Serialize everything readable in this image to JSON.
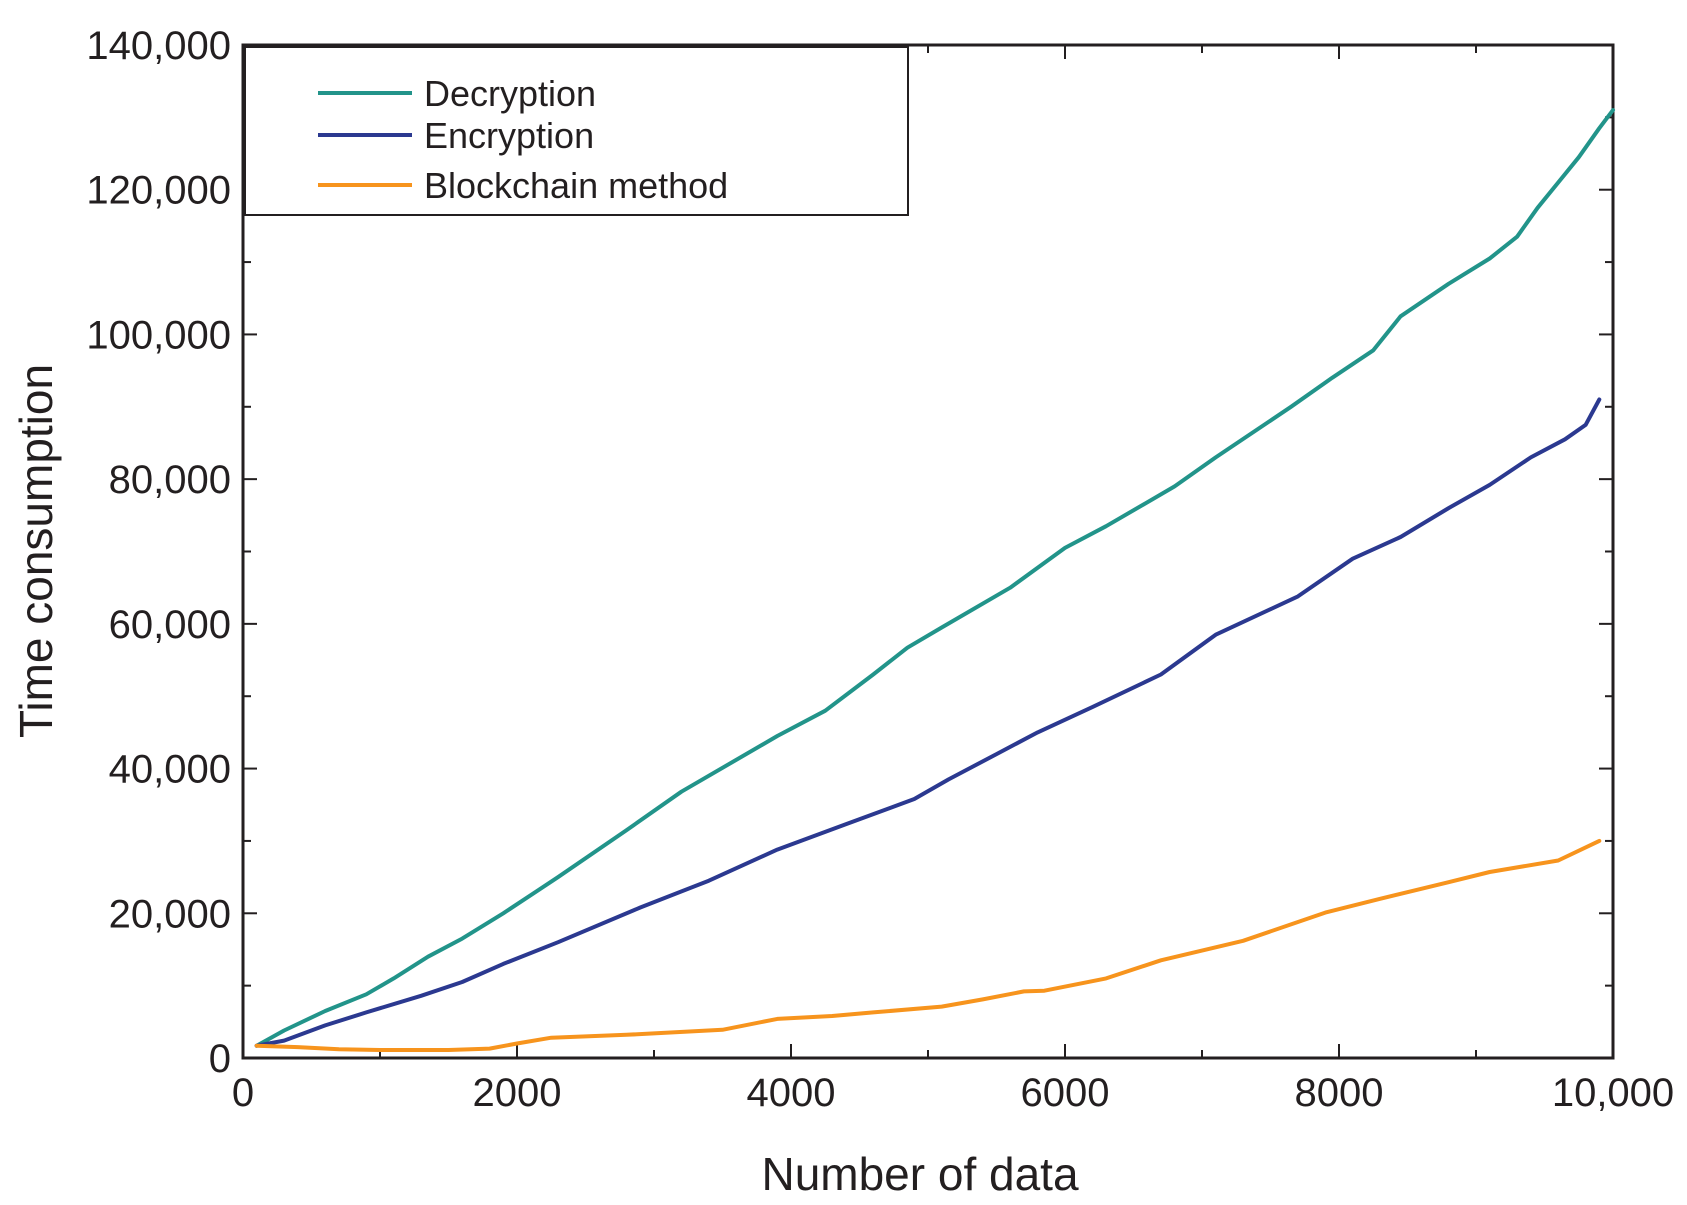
{
  "chart_data": {
    "type": "line",
    "title": "",
    "xlabel": "Number of data",
    "ylabel": "Time consumption",
    "xlim": [
      0,
      10000
    ],
    "ylim": [
      0,
      140000
    ],
    "x_ticks": [
      0,
      2000,
      4000,
      6000,
      8000,
      10000
    ],
    "x_tick_labels": [
      "0",
      "2000",
      "4000",
      "6000",
      "8000",
      "10,000"
    ],
    "y_ticks": [
      0,
      20000,
      40000,
      60000,
      80000,
      100000,
      120000,
      140000
    ],
    "y_tick_labels": [
      "0",
      "20,000",
      "40,000",
      "60,000",
      "80,000",
      "100,000",
      "120,000",
      "140,000"
    ],
    "grid": false,
    "legend_position": "top-left",
    "series": [
      {
        "name": "Decryption",
        "color": "#22948a",
        "points": [
          [
            100,
            1700
          ],
          [
            300,
            3800
          ],
          [
            600,
            6500
          ],
          [
            900,
            8800
          ],
          [
            1100,
            11000
          ],
          [
            1350,
            14000
          ],
          [
            1600,
            16500
          ],
          [
            1900,
            20000
          ],
          [
            2300,
            25000
          ],
          [
            2800,
            31500
          ],
          [
            3200,
            36800
          ],
          [
            3900,
            44500
          ],
          [
            4250,
            48000
          ],
          [
            4600,
            53000
          ],
          [
            4850,
            56700
          ],
          [
            5100,
            59500
          ],
          [
            5600,
            65000
          ],
          [
            6000,
            70500
          ],
          [
            6300,
            73500
          ],
          [
            6800,
            79000
          ],
          [
            7100,
            83000
          ],
          [
            7650,
            90000
          ],
          [
            7950,
            94000
          ],
          [
            8250,
            97800
          ],
          [
            8450,
            102500
          ],
          [
            8800,
            107000
          ],
          [
            9100,
            110500
          ],
          [
            9300,
            113500
          ],
          [
            9450,
            117500
          ],
          [
            9600,
            121000
          ],
          [
            9750,
            124500
          ],
          [
            9900,
            128500
          ],
          [
            10000,
            131000
          ]
        ]
      },
      {
        "name": "Encryption",
        "color": "#2b3990",
        "points": [
          [
            100,
            1700
          ],
          [
            300,
            2400
          ],
          [
            600,
            4500
          ],
          [
            900,
            6300
          ],
          [
            1300,
            8600
          ],
          [
            1600,
            10500
          ],
          [
            1900,
            13000
          ],
          [
            2300,
            16000
          ],
          [
            2900,
            20800
          ],
          [
            3400,
            24500
          ],
          [
            3900,
            28800
          ],
          [
            4400,
            32300
          ],
          [
            4900,
            35800
          ],
          [
            5150,
            38500
          ],
          [
            5500,
            42000
          ],
          [
            5800,
            45000
          ],
          [
            6200,
            48500
          ],
          [
            6700,
            53000
          ],
          [
            7100,
            58500
          ],
          [
            7700,
            63800
          ],
          [
            8100,
            69000
          ],
          [
            8450,
            72000
          ],
          [
            8800,
            76000
          ],
          [
            9100,
            79200
          ],
          [
            9400,
            83000
          ],
          [
            9650,
            85500
          ],
          [
            9800,
            87500
          ],
          [
            9900,
            91000
          ]
        ]
      },
      {
        "name": "Blockchain method",
        "color": "#f7941d",
        "points": [
          [
            100,
            1700
          ],
          [
            400,
            1500
          ],
          [
            700,
            1200
          ],
          [
            1000,
            1100
          ],
          [
            1500,
            1100
          ],
          [
            1800,
            1300
          ],
          [
            2000,
            2000
          ],
          [
            2250,
            2800
          ],
          [
            2800,
            3200
          ],
          [
            3500,
            3900
          ],
          [
            3900,
            5400
          ],
          [
            4300,
            5800
          ],
          [
            4600,
            6300
          ],
          [
            5100,
            7100
          ],
          [
            5400,
            8100
          ],
          [
            5700,
            9200
          ],
          [
            5850,
            9300
          ],
          [
            6300,
            11000
          ],
          [
            6700,
            13500
          ],
          [
            7300,
            16200
          ],
          [
            7900,
            20100
          ],
          [
            8300,
            22000
          ],
          [
            8800,
            24300
          ],
          [
            9100,
            25700
          ],
          [
            9600,
            27300
          ],
          [
            9900,
            30000
          ]
        ]
      }
    ]
  }
}
